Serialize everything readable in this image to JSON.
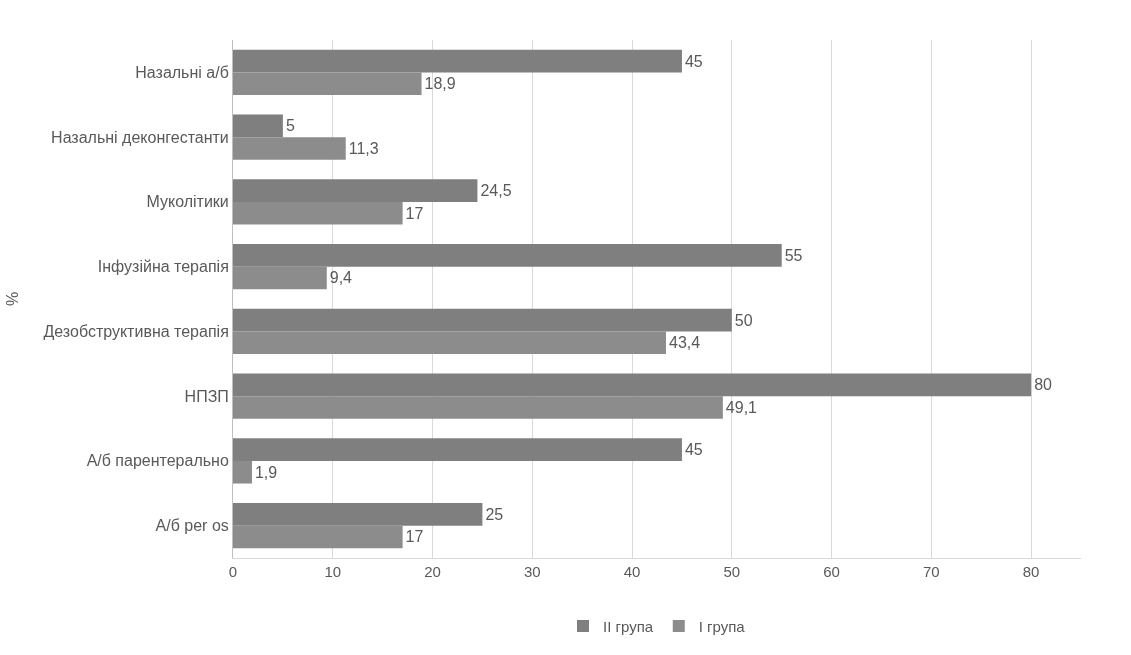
{
  "chart_data": {
    "type": "bar",
    "orientation": "horizontal",
    "ylabel": "%",
    "categories": [
      "Назальні а/б",
      "Назальні деконгестанти",
      "Муколітики",
      "Інфузійна терапія",
      "Дезобструктивна терапія",
      "НПЗП",
      "А/б парентерально",
      "А/б per os"
    ],
    "series": [
      {
        "name": "II група",
        "color": "#7f7f7f",
        "values": [
          45,
          5,
          24.5,
          55,
          50,
          80,
          45,
          25
        ],
        "value_labels": [
          "45",
          "5",
          "24,5",
          "55",
          "50",
          "80",
          "45",
          "25"
        ]
      },
      {
        "name": "I група",
        "color": "#8c8c8c",
        "values": [
          18.9,
          11.3,
          17,
          9.4,
          43.4,
          49.1,
          1.9,
          17
        ],
        "value_labels": [
          "18,9",
          "11,3",
          "17",
          "9,4",
          "43,4",
          "49,1",
          "1,9",
          "17"
        ]
      }
    ],
    "xlim": [
      0,
      85
    ],
    "xticks": [
      0,
      10,
      20,
      30,
      40,
      50,
      60,
      70,
      80
    ],
    "grid": "x",
    "legend": "bottom"
  }
}
